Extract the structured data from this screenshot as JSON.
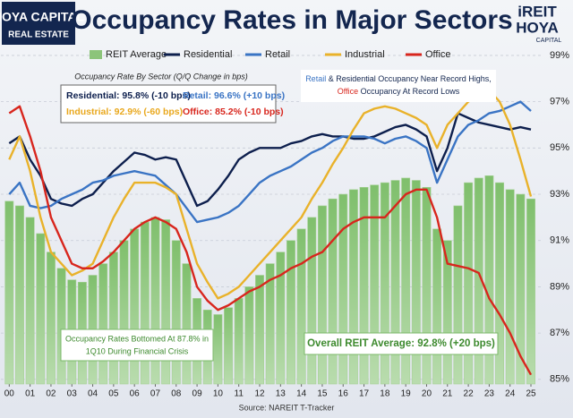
{
  "chart_data": {
    "type": "combo",
    "title": "Occupancy Rates in Major Sectors",
    "subtitle": "Occupancy Rate By Sector (Q/Q Change in bps)",
    "left_logo": [
      "HOYA CAPITAL",
      "REAL ESTATE"
    ],
    "right_logo": [
      "iREIT",
      "HOYA",
      "CAPITAL"
    ],
    "summary": [
      {
        "text": "Residential: 95.8% (-10 bps)",
        "color": "#0d1f4d"
      },
      {
        "text": "Retail: 96.6% (+10 bps)",
        "color": "#3a74c4"
      },
      {
        "text": "Industrial: 92.9% (-60 bps)",
        "color": "#e9a81d"
      },
      {
        "text": "Office: 85.2% (-10 bps)",
        "color": "#d8261d"
      }
    ],
    "note": [
      [
        "Retail",
        " & Residential Occupancy Near Record Highs,"
      ],
      [
        "Office",
        " Occupancy At Record Lows"
      ]
    ],
    "bottom_note": [
      "Occupancy Rates Bottomed At 87.8% in",
      "1Q10 During Financial Crisis"
    ],
    "average_note": "Overall REIT Average: 92.8% (+20 bps)",
    "source": "Source: NAREIT T-Tracker",
    "x": [
      2000,
      2000.5,
      2001,
      2001.5,
      2002,
      2002.5,
      2003,
      2003.5,
      2004,
      2004.5,
      2005,
      2005.5,
      2006,
      2006.5,
      2007,
      2007.5,
      2008,
      2008.5,
      2009,
      2009.5,
      2010,
      2010.5,
      2011,
      2011.5,
      2012,
      2012.5,
      2013,
      2013.5,
      2014,
      2014.5,
      2015,
      2015.5,
      2016,
      2016.5,
      2017,
      2017.5,
      2018,
      2018.5,
      2019,
      2019.5,
      2020,
      2020.5,
      2021,
      2021.5,
      2022,
      2022.5,
      2023,
      2023.5,
      2024,
      2024.5,
      2025
    ],
    "series": [
      {
        "name": "REIT Average",
        "type": "bar",
        "color": "#8cc47a",
        "values": [
          92.7,
          92.5,
          92.0,
          91.3,
          90.5,
          89.8,
          89.3,
          89.2,
          89.5,
          90.0,
          90.5,
          91.0,
          91.5,
          91.8,
          92.0,
          91.9,
          91.0,
          90.0,
          88.5,
          88.0,
          87.8,
          88.1,
          88.5,
          89.0,
          89.5,
          90.0,
          90.5,
          91.0,
          91.5,
          92.0,
          92.5,
          92.8,
          93.0,
          93.2,
          93.3,
          93.4,
          93.5,
          93.6,
          93.7,
          93.6,
          93.3,
          91.5,
          91.0,
          92.5,
          93.5,
          93.7,
          93.8,
          93.5,
          93.2,
          93.0,
          92.8
        ]
      },
      {
        "name": "Residential",
        "type": "line",
        "color": "#0d1f4d",
        "values": [
          95.2,
          95.5,
          94.5,
          93.8,
          92.8,
          92.6,
          92.5,
          92.8,
          93.0,
          93.5,
          94.0,
          94.4,
          94.8,
          94.7,
          94.5,
          94.6,
          94.5,
          93.5,
          92.5,
          92.7,
          93.2,
          93.8,
          94.5,
          94.8,
          95.0,
          95.0,
          95.0,
          95.2,
          95.3,
          95.5,
          95.6,
          95.5,
          95.5,
          95.4,
          95.4,
          95.5,
          95.7,
          95.9,
          96.0,
          95.8,
          95.5,
          94.0,
          95.0,
          96.5,
          96.3,
          96.1,
          96.0,
          95.9,
          95.8,
          95.9,
          95.8
        ]
      },
      {
        "name": "Retail",
        "type": "line",
        "color": "#3a74c4",
        "values": [
          93.0,
          93.5,
          92.5,
          92.4,
          92.5,
          92.8,
          93.0,
          93.2,
          93.5,
          93.6,
          93.8,
          93.9,
          94.0,
          93.9,
          93.8,
          93.4,
          93.0,
          92.4,
          91.8,
          91.9,
          92.0,
          92.2,
          92.5,
          93.0,
          93.5,
          93.8,
          94.0,
          94.2,
          94.5,
          94.8,
          95.0,
          95.3,
          95.5,
          95.5,
          95.5,
          95.4,
          95.2,
          95.4,
          95.5,
          95.3,
          95.0,
          93.5,
          94.5,
          95.5,
          96.0,
          96.2,
          96.5,
          96.6,
          96.8,
          97.0,
          96.6
        ]
      },
      {
        "name": "Industrial",
        "type": "line",
        "color": "#e9b22a",
        "values": [
          94.5,
          95.5,
          94.0,
          92.0,
          90.5,
          90.0,
          89.5,
          89.7,
          90.0,
          91.0,
          92.0,
          92.8,
          93.5,
          93.5,
          93.5,
          93.3,
          93.0,
          91.5,
          90.0,
          89.2,
          88.5,
          88.7,
          89.0,
          89.5,
          90.0,
          90.5,
          91.0,
          91.5,
          92.0,
          92.8,
          93.5,
          94.3,
          95.0,
          95.8,
          96.5,
          96.7,
          96.8,
          96.7,
          96.5,
          96.3,
          96.0,
          95.0,
          96.0,
          96.5,
          97.0,
          97.3,
          97.5,
          97.0,
          96.0,
          94.5,
          92.9
        ]
      },
      {
        "name": "Office",
        "type": "line",
        "color": "#d8261d",
        "values": [
          96.5,
          96.8,
          95.5,
          94.0,
          92.0,
          91.0,
          90.0,
          89.8,
          89.8,
          90.1,
          90.5,
          91.0,
          91.5,
          91.8,
          92.0,
          91.8,
          91.5,
          90.5,
          89.0,
          88.4,
          88.0,
          88.2,
          88.5,
          88.8,
          89.0,
          89.3,
          89.5,
          89.8,
          90.0,
          90.3,
          90.5,
          91.0,
          91.5,
          91.8,
          92.0,
          92.0,
          92.0,
          92.5,
          93.0,
          93.2,
          93.2,
          92.0,
          90.0,
          89.9,
          89.8,
          89.6,
          88.5,
          87.8,
          87.0,
          86.0,
          85.2
        ]
      }
    ],
    "xlim": [
      1999.6,
      2025.6
    ],
    "xticks": [
      {
        "value": 2000,
        "label": "00"
      },
      {
        "value": 2001,
        "label": "01"
      },
      {
        "value": 2002,
        "label": "02"
      },
      {
        "value": 2003,
        "label": "03"
      },
      {
        "value": 2004,
        "label": "04"
      },
      {
        "value": 2005,
        "label": "05"
      },
      {
        "value": 2006,
        "label": "06"
      },
      {
        "value": 2007,
        "label": "07"
      },
      {
        "value": 2008,
        "label": "08"
      },
      {
        "value": 2009,
        "label": "09"
      },
      {
        "value": 2010,
        "label": "10"
      },
      {
        "value": 2011,
        "label": "11"
      },
      {
        "value": 2012,
        "label": "12"
      },
      {
        "value": 2013,
        "label": "13"
      },
      {
        "value": 2014,
        "label": "14"
      },
      {
        "value": 2015,
        "label": "15"
      },
      {
        "value": 2016,
        "label": "16"
      },
      {
        "value": 2017,
        "label": "17"
      },
      {
        "value": 2018,
        "label": "18"
      },
      {
        "value": 2019,
        "label": "19"
      },
      {
        "value": 2020,
        "label": "20"
      },
      {
        "value": 2021,
        "label": "21"
      },
      {
        "value": 2022,
        "label": "22"
      },
      {
        "value": 2023,
        "label": "23"
      },
      {
        "value": 2024,
        "label": "24"
      },
      {
        "value": 2025,
        "label": "25"
      }
    ],
    "ylim": [
      84.8,
      99.5
    ],
    "yticks": [
      {
        "value": 85,
        "label": "85%"
      },
      {
        "value": 87,
        "label": "87%"
      },
      {
        "value": 89,
        "label": "89%"
      },
      {
        "value": 91,
        "label": "91%"
      },
      {
        "value": 93,
        "label": "93%"
      },
      {
        "value": 95,
        "label": "95%"
      },
      {
        "value": 97,
        "label": "97%"
      },
      {
        "value": 99,
        "label": "99%"
      }
    ],
    "grid": true
  }
}
